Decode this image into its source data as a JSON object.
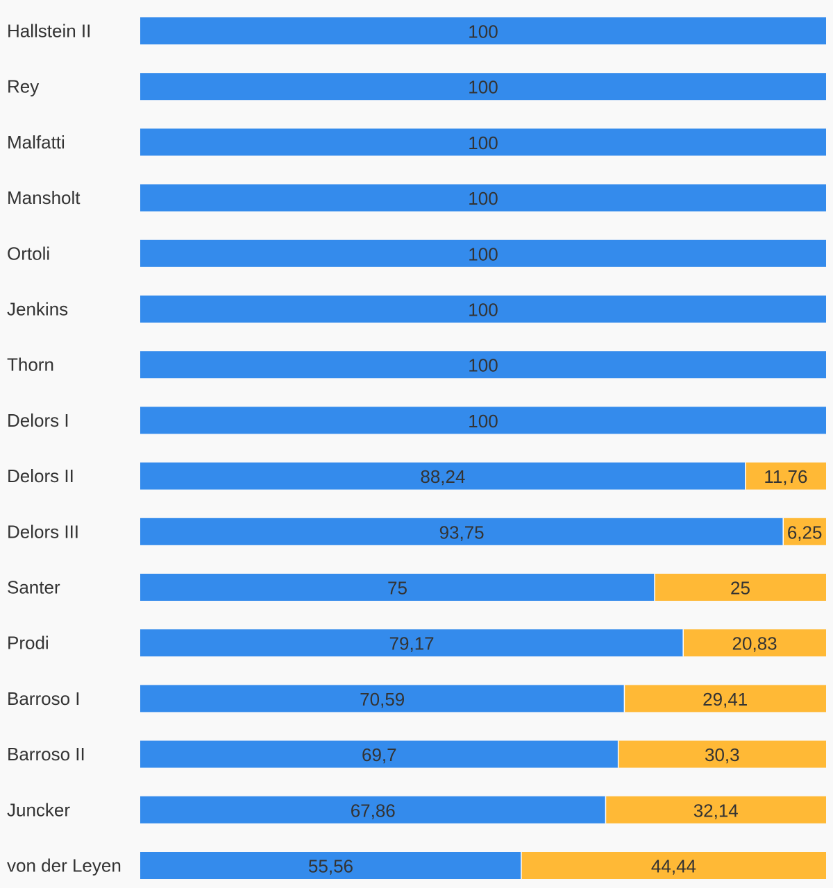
{
  "chart_data": {
    "type": "bar",
    "orientation": "horizontal",
    "stacked": true,
    "categories": [
      "Hallstein II",
      "Rey",
      "Malfatti",
      "Mansholt",
      "Ortoli",
      "Jenkins",
      "Thorn",
      "Delors I",
      "Delors II",
      "Delors III",
      "Santer",
      "Prodi",
      "Barroso I",
      "Barroso II",
      "Juncker",
      "von der Leyen"
    ],
    "series": [
      {
        "color": "#348bec",
        "values": [
          100,
          100,
          100,
          100,
          100,
          100,
          100,
          100,
          88.24,
          93.75,
          75,
          79.17,
          70.59,
          69.7,
          67.86,
          55.56
        ],
        "labels": [
          "100",
          "100",
          "100",
          "100",
          "100",
          "100",
          "100",
          "100",
          "88,24",
          "93,75",
          "75",
          "79,17",
          "70,59",
          "69,7",
          "67,86",
          "55,56"
        ]
      },
      {
        "color": "#ffb936",
        "values": [
          0,
          0,
          0,
          0,
          0,
          0,
          0,
          0,
          11.76,
          6.25,
          25,
          20.83,
          29.41,
          30.3,
          32.14,
          44.44
        ],
        "labels": [
          "",
          "",
          "",
          "",
          "",
          "",
          "",
          "",
          "11,76",
          "6,25",
          "25",
          "20,83",
          "29,41",
          "30,3",
          "32,14",
          "44,44"
        ]
      }
    ],
    "xlim": [
      0,
      100
    ],
    "grid": false,
    "legend": "none",
    "title": "",
    "xlabel": "",
    "ylabel": ""
  }
}
